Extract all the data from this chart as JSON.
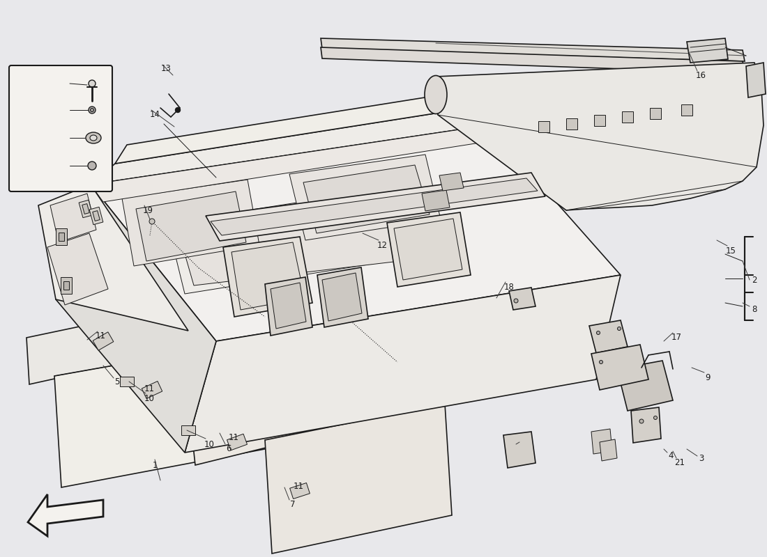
{
  "bg_color": "#e8e8eb",
  "line_color": "#1a1a1a",
  "lw_main": 1.2,
  "lw_thin": 0.7,
  "lw_heavy": 2.0,
  "parts_bg": "#f2f0ee",
  "shadow_color": "#c8c6c2"
}
